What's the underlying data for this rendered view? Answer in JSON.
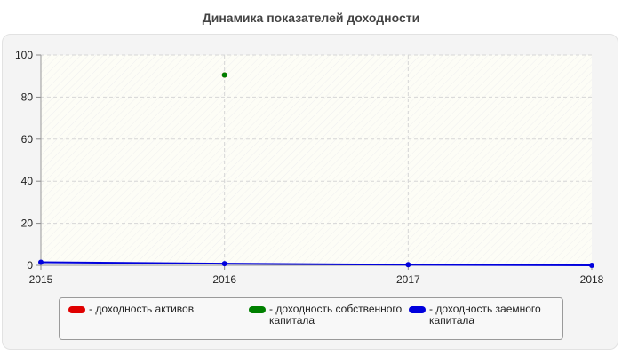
{
  "chart_data": {
    "type": "line",
    "title": "Динамика показателей доходности",
    "xlabel": "",
    "ylabel": "",
    "x": [
      "2015",
      "2016",
      "2017",
      "2018"
    ],
    "ylim": [
      0,
      100
    ],
    "yticks": [
      0,
      20,
      40,
      60,
      80,
      100
    ],
    "grid": true,
    "legend_position": "bottom",
    "series": [
      {
        "name": "- доходность активов",
        "color": "#e00000",
        "values": [
          null,
          90.5,
          null,
          null
        ]
      },
      {
        "name": "- доходность собственного капитала",
        "color": "#008000",
        "values": [
          null,
          90.5,
          null,
          null
        ]
      },
      {
        "name": "- доходность заемного капитала",
        "color": "#0000dd",
        "values": [
          1.5,
          0.8,
          0.3,
          0.0
        ]
      }
    ]
  }
}
